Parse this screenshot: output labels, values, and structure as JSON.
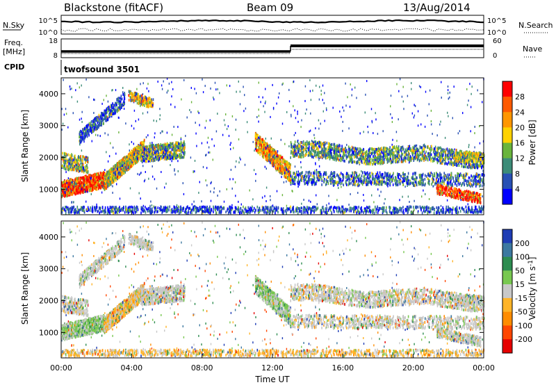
{
  "header": {
    "station": "Blackstone (fitACF)",
    "beam": "Beam 09",
    "date": "13/Aug/2014"
  },
  "noise_panel": {
    "left_label": "N.Sky",
    "right_label": "N.Search",
    "left_ticks": [
      "10^5",
      "10^0"
    ],
    "right_ticks": [
      "10^5",
      "10^0"
    ]
  },
  "freq_panel": {
    "left_label_line1": "Freq.",
    "left_label_line2": "[MHz]",
    "left_ticks": [
      "18",
      "8"
    ],
    "right_label": "Nave",
    "right_ticks": [
      "60",
      "0"
    ],
    "cpid_label": "CPID",
    "cpid_value": "twofsound 3501"
  },
  "chart_data": [
    {
      "type": "heatmap",
      "panel": "power",
      "ylabel": "Slant Range [km]",
      "xlabel": "",
      "yticks": [
        1000,
        2000,
        3000,
        4000
      ],
      "ylim": [
        200,
        4500
      ],
      "xlim_hours": [
        0,
        24
      ],
      "colorbar": {
        "label": "Power [dB]",
        "ticks": [
          "28",
          "24",
          "20",
          "16",
          "12",
          "8",
          "4"
        ],
        "colors": [
          "#ff0000",
          "#ff5a00",
          "#ff9600",
          "#ffd200",
          "#69b43c",
          "#3c8c78",
          "#2850b4",
          "#0000ff"
        ]
      },
      "features": [
        {
          "from": 0,
          "to": 2.5,
          "range_start": 1000,
          "range_end": 1200,
          "level": "high"
        },
        {
          "from": 2.5,
          "to": 6.5,
          "range_start": 1500,
          "range_end": 2400,
          "level": "medium"
        },
        {
          "from": 11,
          "to": 13,
          "range_start": 2400,
          "range_end": 1400,
          "level": "high"
        },
        {
          "from": 13,
          "to": 24,
          "range_start": 2100,
          "range_end": 1900,
          "level": "medium"
        },
        {
          "from": 21.5,
          "to": 23.5,
          "range_start": 1000,
          "range_end": 700,
          "level": "high"
        }
      ]
    },
    {
      "type": "heatmap",
      "panel": "velocity",
      "ylabel": "Slant Range [km]",
      "xlabel": "Time UT",
      "yticks": [
        1000,
        2000,
        3000,
        4000
      ],
      "ylim": [
        200,
        4500
      ],
      "xlim_hours": [
        0,
        24
      ],
      "xticks": [
        "00:00",
        "04:00",
        "08:00",
        "12:00",
        "16:00",
        "20:00",
        "00:00"
      ],
      "colorbar": {
        "label": "Velocity [m s^-1]",
        "ticks": [
          "200",
          "100",
          "50",
          "15",
          "-15",
          "-50",
          "-100",
          "-200"
        ],
        "colors": [
          "#1e3cb4",
          "#3c78a0",
          "#2d8c50",
          "#78c850",
          "#c8c8c8",
          "#ffb428",
          "#ff8c00",
          "#ff4600",
          "#e60000"
        ]
      }
    }
  ]
}
